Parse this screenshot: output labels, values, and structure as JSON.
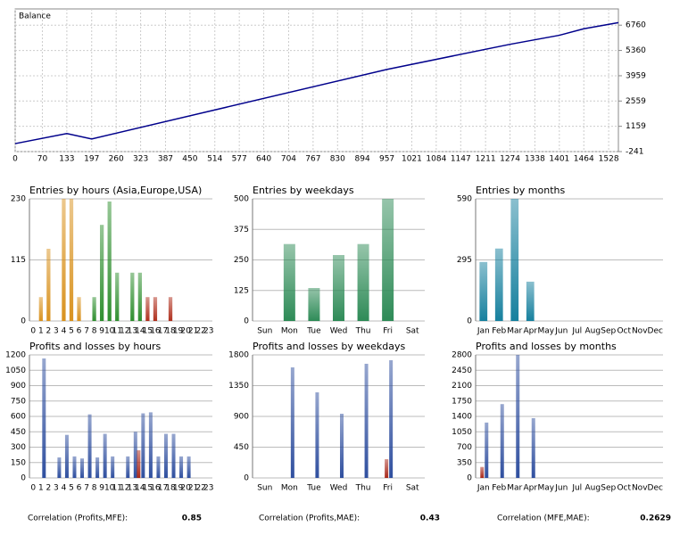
{
  "chart_data": [
    {
      "type": "line",
      "title": "Balance",
      "x": [
        0,
        133,
        197,
        957,
        1274,
        1401,
        1464,
        1553
      ],
      "series": [
        {
          "color": "#00008b",
          "values": [
            200,
            760,
            460,
            4310,
            5700,
            6200,
            6560,
            6900
          ]
        }
      ],
      "xlim": [
        0,
        1553
      ],
      "ylim": [
        -241,
        7660
      ],
      "xticks": [
        0,
        70,
        133,
        197,
        260,
        323,
        387,
        450,
        514,
        577,
        640,
        704,
        767,
        830,
        894,
        957,
        1021,
        1084,
        1147,
        1211,
        1274,
        1338,
        1401,
        1464,
        1528
      ],
      "yticks": [
        -241,
        1159,
        2559,
        3959,
        5360,
        6760
      ],
      "grid": true
    },
    {
      "type": "bar",
      "title": "Entries by hours (Asia,Europe,USA)",
      "categories": [
        "0",
        "1",
        "2",
        "3",
        "4",
        "5",
        "6",
        "7",
        "8",
        "9",
        "10",
        "11",
        "12",
        "13",
        "14",
        "15",
        "16",
        "17",
        "18",
        "19",
        "20",
        "21",
        "22",
        "23"
      ],
      "values": [
        0,
        45,
        136,
        0,
        230,
        230,
        45,
        0,
        45,
        181,
        225,
        91,
        0,
        91,
        91,
        45,
        45,
        0,
        45,
        0,
        0,
        0,
        0,
        0
      ],
      "colors": [
        "#d9921e",
        "#d9921e",
        "#d9921e",
        "#d9921e",
        "#d9921e",
        "#d9921e",
        "#d9921e",
        "#d9921e",
        "#2f8f2f",
        "#2f8f2f",
        "#2f8f2f",
        "#2f8f2f",
        "#2f8f2f",
        "#2f8f2f",
        "#2f8f2f",
        "#b0301e",
        "#b0301e",
        "#b0301e",
        "#b0301e",
        "#b0301e",
        "#b0301e",
        "#b0301e",
        "#b0301e",
        "#b0301e"
      ],
      "ylim": [
        0,
        230
      ],
      "yticks": [
        0,
        115,
        230
      ],
      "grid": true
    },
    {
      "type": "bar",
      "title": "Entries by weekdays",
      "categories": [
        "Sun",
        "Mon",
        "Tue",
        "Wed",
        "Thu",
        "Fri",
        "Sat"
      ],
      "values": [
        0,
        315,
        135,
        270,
        315,
        500,
        0
      ],
      "color": "#2e8b57",
      "ylim": [
        0,
        500
      ],
      "yticks": [
        0,
        125,
        250,
        375,
        500
      ],
      "grid": true
    },
    {
      "type": "bar",
      "title": "Entries by months",
      "categories": [
        "Jan",
        "Feb",
        "Mar",
        "Apr",
        "May",
        "Jun",
        "Jul",
        "Aug",
        "Sep",
        "Oct",
        "Nov",
        "Dec"
      ],
      "values": [
        285,
        350,
        590,
        190,
        0,
        0,
        0,
        0,
        0,
        0,
        0,
        0
      ],
      "color": "#16809e",
      "ylim": [
        0,
        590
      ],
      "yticks": [
        0,
        295,
        590
      ],
      "grid": true
    },
    {
      "type": "bar",
      "title": "Profits and losses by hours",
      "categories": [
        "0",
        "1",
        "2",
        "3",
        "4",
        "5",
        "6",
        "7",
        "8",
        "9",
        "10",
        "11",
        "12",
        "13",
        "14",
        "15",
        "16",
        "17",
        "18",
        "19",
        "20",
        "21",
        "22",
        "23"
      ],
      "series": [
        {
          "color": "#2f4f9f",
          "values": [
            0,
            1165,
            0,
            200,
            420,
            210,
            190,
            620,
            200,
            430,
            210,
            0,
            210,
            450,
            630,
            640,
            210,
            430,
            430,
            210,
            210,
            0,
            0,
            0
          ]
        },
        {
          "color": "#a8281a",
          "values": [
            0,
            0,
            0,
            0,
            0,
            0,
            0,
            0,
            0,
            0,
            0,
            0,
            0,
            0,
            270,
            0,
            0,
            0,
            0,
            0,
            0,
            0,
            0,
            0
          ]
        }
      ],
      "ylim": [
        0,
        1200
      ],
      "yticks": [
        0,
        150,
        300,
        450,
        600,
        750,
        900,
        1050,
        1200
      ],
      "grid": true
    },
    {
      "type": "bar",
      "title": "Profits and losses by weekdays",
      "categories": [
        "Sun",
        "Mon",
        "Tue",
        "Wed",
        "Thu",
        "Fri",
        "Sat"
      ],
      "series": [
        {
          "color": "#2f4f9f",
          "values": [
            0,
            1617,
            1252,
            939,
            1670,
            1722,
            0
          ]
        },
        {
          "color": "#a8281a",
          "values": [
            0,
            0,
            0,
            0,
            0,
            274,
            0
          ]
        }
      ],
      "ylim": [
        0,
        1800
      ],
      "yticks": [
        0,
        450,
        900,
        1350,
        1800
      ],
      "grid": true
    },
    {
      "type": "bar",
      "title": "Profits and losses by months",
      "categories": [
        "Jan",
        "Feb",
        "Mar",
        "Apr",
        "May",
        "Jun",
        "Jul",
        "Aug",
        "Sep",
        "Oct",
        "Nov",
        "Dec"
      ],
      "series": [
        {
          "color": "#2f4f9f",
          "values": [
            1260,
            1680,
            2800,
            1360,
            0,
            0,
            0,
            0,
            0,
            0,
            0,
            0
          ]
        },
        {
          "color": "#a8281a",
          "values": [
            250,
            0,
            0,
            0,
            0,
            0,
            0,
            0,
            0,
            0,
            0,
            0
          ]
        }
      ],
      "ylim": [
        0,
        2800
      ],
      "yticks": [
        0,
        350,
        700,
        1050,
        1400,
        1750,
        2100,
        2450,
        2800
      ],
      "grid": true
    }
  ],
  "correlations": [
    {
      "label": "Correlation (Profits,MFE):",
      "value": 0.85
    },
    {
      "label": "Correlation (Profits,MAE):",
      "value": 0.43
    },
    {
      "label": "Correlation (MFE,MAE):",
      "value": 0.2629
    }
  ]
}
